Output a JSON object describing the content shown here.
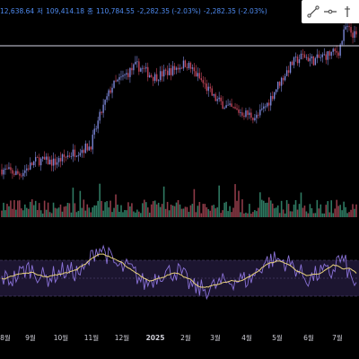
{
  "legend": {
    "open_fragment": "12,638.64",
    "low_label": "저",
    "low": "109,414.18",
    "close_label": "종",
    "close": "110,784.55",
    "change": "-2,282.35 (-2.03%)",
    "change2": "-2,282.35 (-2.03%)"
  },
  "toolbar": {
    "tools": [
      {
        "name": "trend-line-tool-icon"
      },
      {
        "name": "horizontal-line-tool-icon"
      },
      {
        "name": "more-tools-icon"
      }
    ]
  },
  "colors": {
    "background": "#000000",
    "candle_up": "#7c87d8",
    "candle_down": "#c2455a",
    "volume_up": "#2f7a62",
    "volume_down": "#8e3b48",
    "rsi_line": "#8a72d8",
    "rsi_ma": "#e8d27a",
    "rsi_band": "#1c1530",
    "legend_text": "#4f8bf0",
    "horizontal_level": "#d8d8e8"
  },
  "chart_data": {
    "type": "candlestick",
    "x_axis": {
      "labels": [
        "8월",
        "9월",
        "10월",
        "11월",
        "12월",
        "2025",
        "2월",
        "3월",
        "4월",
        "5월",
        "6월",
        "7월"
      ]
    },
    "series": [
      {
        "kind": "price",
        "trend": [
          [
            0,
            58000
          ],
          [
            0.05,
            56000
          ],
          [
            0.1,
            62000
          ],
          [
            0.15,
            61000
          ],
          [
            0.2,
            65000
          ],
          [
            0.25,
            68000
          ],
          [
            0.28,
            82000
          ],
          [
            0.31,
            93000
          ],
          [
            0.35,
            98000
          ],
          [
            0.38,
            102000
          ],
          [
            0.43,
            97000
          ],
          [
            0.48,
            100000
          ],
          [
            0.52,
            103000
          ],
          [
            0.56,
            96000
          ],
          [
            0.6,
            88000
          ],
          [
            0.64,
            84000
          ],
          [
            0.68,
            82000
          ],
          [
            0.72,
            80000
          ],
          [
            0.75,
            86000
          ],
          [
            0.78,
            94000
          ],
          [
            0.82,
            103000
          ],
          [
            0.85,
            106000
          ],
          [
            0.88,
            104000
          ],
          [
            0.91,
            106000
          ],
          [
            0.95,
            108000
          ],
          [
            0.97,
            118000
          ],
          [
            1.0,
            114000
          ]
        ]
      },
      {
        "kind": "volume"
      },
      {
        "kind": "rsi",
        "bands": [
          70,
          50,
          30
        ]
      }
    ],
    "horizontal_level": 111900
  }
}
